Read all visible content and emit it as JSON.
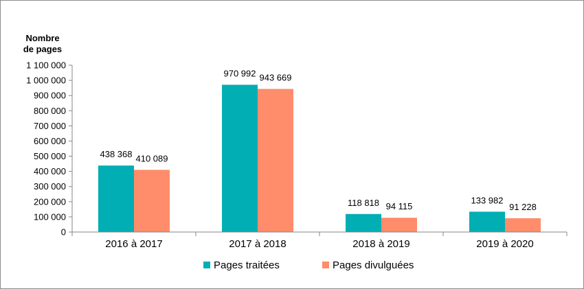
{
  "chart_data": {
    "type": "bar",
    "ylabel_lines": [
      "Nombre",
      "de pages"
    ],
    "categories": [
      "2016 à 2017",
      "2017 à 2018",
      "2018 à 2019",
      "2019 à 2020"
    ],
    "series": [
      {
        "name": "Pages traitées",
        "color": "#00aeb3",
        "values": [
          438368,
          970992,
          118818,
          133982
        ]
      },
      {
        "name": "Pages divulguées",
        "color": "#ff8c6b",
        "values": [
          410089,
          943669,
          94115,
          91228
        ]
      }
    ],
    "value_labels": [
      [
        "438 368",
        "970 992",
        "118 818",
        "133 982"
      ],
      [
        "410 089",
        "943 669",
        "94 115",
        "91 228"
      ]
    ],
    "ylim": [
      0,
      1100000
    ],
    "yticks": [
      0,
      100000,
      200000,
      300000,
      400000,
      500000,
      600000,
      700000,
      800000,
      900000,
      1000000,
      1100000
    ],
    "ytick_labels": [
      "0",
      "100 000",
      "200 000",
      "300 000",
      "400 000",
      "500 000",
      "600 000",
      "700 000",
      "800 000",
      "900 000",
      "1 000 000",
      "1 100 000"
    ],
    "grid": false,
    "legend_position": "bottom"
  }
}
